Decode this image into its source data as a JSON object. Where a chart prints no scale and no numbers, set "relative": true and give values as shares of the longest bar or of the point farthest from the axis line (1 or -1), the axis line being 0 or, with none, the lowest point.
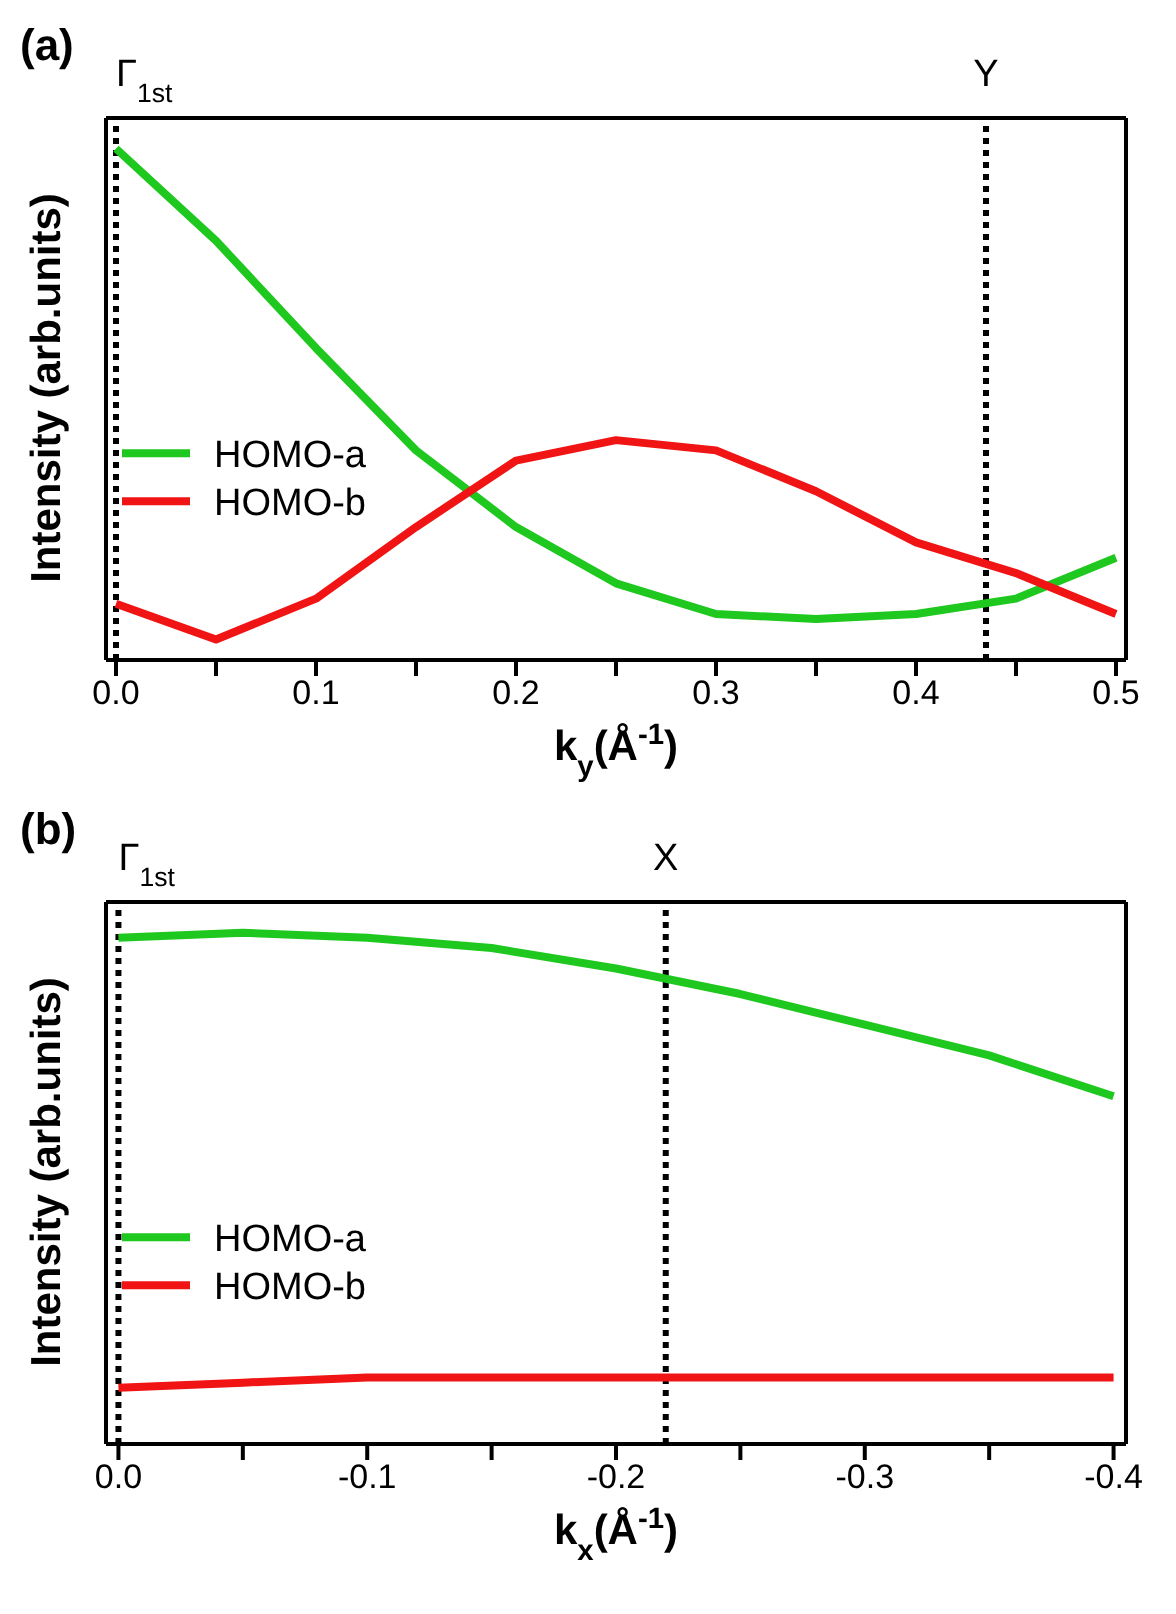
{
  "chart_data": [
    {
      "type": "line",
      "title": "(a)",
      "xlabel": "k$_{y}$(Å$^{-1}$)",
      "ylabel": "Intensity (arb.units)",
      "relative": true,
      "x": [
        0,
        0.05,
        0.1,
        0.15,
        0.2,
        0.25,
        0.3,
        0.35,
        0.4,
        0.45,
        0.5
      ],
      "series": [
        {
          "name": "HOMO-a",
          "color": "#1ec81e",
          "values": [
            1,
            0.82,
            0.61,
            0.41,
            0.26,
            0.15,
            0.09,
            0.08,
            0.09,
            0.12,
            0.2
          ]
        },
        {
          "name": "HOMO-b",
          "color": "#f01414",
          "values": [
            0.11,
            0.04,
            0.12,
            0.26,
            0.39,
            0.43,
            0.41,
            0.33,
            0.23,
            0.17,
            0.09
          ]
        }
      ],
      "xlim": [
        -0.005,
        0.505
      ],
      "xticks": [
        {
          "value": 0,
          "label": "0.0"
        },
        {
          "value": 0.05,
          "label": null
        },
        0.1,
        {
          "value": 0.15,
          "label": null
        },
        0.2,
        {
          "value": 0.25,
          "label": null
        },
        0.3,
        {
          "value": 0.35,
          "label": null
        },
        0.4,
        {
          "value": 0.45,
          "label": null
        },
        0.5
      ],
      "ref_lines": [
        {
          "axis": "x",
          "value": 0,
          "label": "Γ$_{1st}$",
          "color": "#000000",
          "line_style": "dotted"
        },
        {
          "axis": "x",
          "value": 0.435,
          "label": "Y",
          "color": "#000000",
          "line_style": "dotted"
        }
      ],
      "legend": "left",
      "line_style": "solid",
      "marker": "none",
      "grid": false
    },
    {
      "type": "line",
      "title": "(b)",
      "xlabel": "k$_{x}$(Å$^{-1}$)",
      "ylabel": "Intensity (arb.units)",
      "relative": true,
      "x": [
        0,
        -0.05,
        -0.1,
        -0.15,
        -0.2,
        -0.25,
        -0.3,
        -0.35,
        -0.4
      ],
      "series": [
        {
          "name": "HOMO-a",
          "color": "#1ec81e",
          "values": [
            0.99,
            1,
            0.99,
            0.97,
            0.93,
            0.88,
            0.82,
            0.76,
            0.68
          ]
        },
        {
          "name": "HOMO-b",
          "color": "#f01414",
          "values": [
            0.11,
            0.12,
            0.13,
            0.13,
            0.13,
            0.13,
            0.13,
            0.13,
            0.13
          ]
        }
      ],
      "xlim": [
        0.005,
        -0.405
      ],
      "xticks": [
        {
          "value": 0,
          "label": "0.0"
        },
        {
          "value": -0.05,
          "label": null
        },
        -0.1,
        {
          "value": -0.15,
          "label": null
        },
        -0.2,
        {
          "value": -0.25,
          "label": null
        },
        -0.3,
        {
          "value": -0.35,
          "label": null
        },
        -0.4
      ],
      "ref_lines": [
        {
          "axis": "x",
          "value": 0,
          "label": "Γ$_{1st}$",
          "color": "#000000",
          "line_style": "dotted"
        },
        {
          "axis": "x",
          "value": -0.22,
          "label": "X",
          "color": "#000000",
          "line_style": "dotted"
        }
      ],
      "legend": "left",
      "line_style": "solid",
      "marker": "none",
      "grid": false
    }
  ]
}
